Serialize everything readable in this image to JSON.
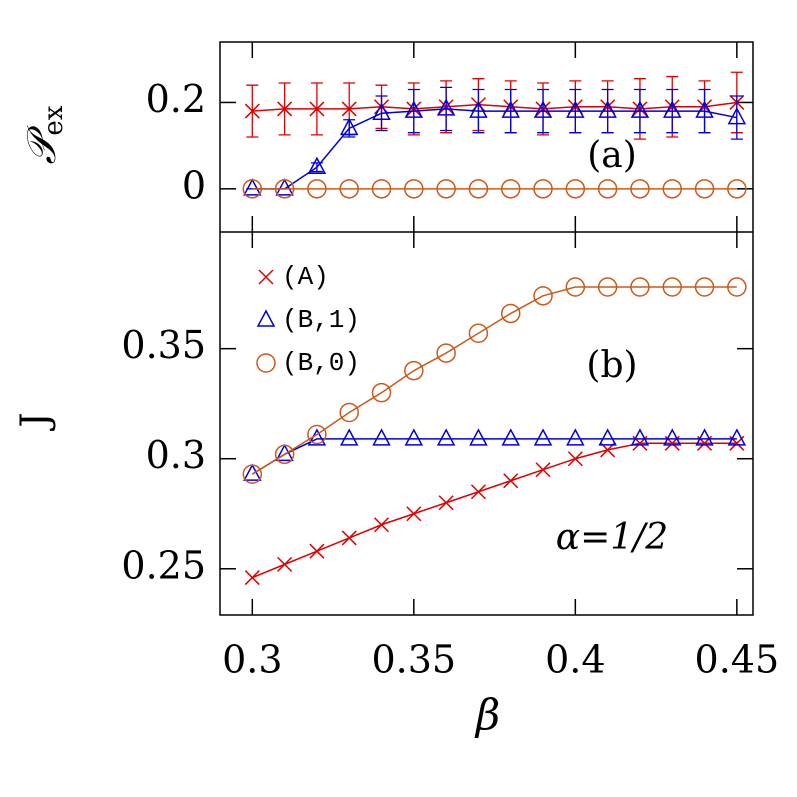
{
  "chart_data": [
    {
      "type": "line",
      "panel_label": "(a)",
      "ylabel": "𝒫",
      "ylabel_sub": "ex",
      "xlim": [
        0.29,
        0.455
      ],
      "ylim": [
        -0.1,
        0.34
      ],
      "yticks": [
        0,
        0.2
      ],
      "x": [
        0.3,
        0.31,
        0.32,
        0.33,
        0.34,
        0.35,
        0.36,
        0.37,
        0.38,
        0.39,
        0.4,
        0.41,
        0.42,
        0.43,
        0.44,
        0.45
      ],
      "series": [
        {
          "name": "(A)",
          "color": "#e00000",
          "marker": "x",
          "values": [
            0.18,
            0.185,
            0.185,
            0.185,
            0.19,
            0.185,
            0.19,
            0.195,
            0.19,
            0.185,
            0.19,
            0.19,
            0.185,
            0.19,
            0.19,
            0.2
          ],
          "errors": [
            0.06,
            0.06,
            0.06,
            0.06,
            0.05,
            0.06,
            0.06,
            0.06,
            0.06,
            0.06,
            0.06,
            0.06,
            0.07,
            0.07,
            0.06,
            0.07
          ]
        },
        {
          "name": "(B,1)",
          "color": "#0000dd",
          "marker": "triangle",
          "values": [
            0,
            0,
            0.05,
            0.14,
            0.175,
            0.18,
            0.185,
            0.18,
            0.18,
            0.18,
            0.18,
            0.18,
            0.18,
            0.18,
            0.18,
            0.165
          ],
          "errors": [
            0,
            0,
            0.01,
            0.02,
            0.04,
            0.05,
            0.05,
            0.05,
            0.05,
            0.05,
            0.05,
            0.05,
            0.05,
            0.05,
            0.05,
            0.05
          ]
        },
        {
          "name": "(B,0)",
          "color": "#cc5a1a",
          "marker": "circle",
          "values": [
            0,
            0,
            0,
            0,
            0,
            0,
            0,
            0,
            0,
            0,
            0,
            0,
            0,
            0,
            0,
            0
          ]
        }
      ]
    },
    {
      "type": "line",
      "panel_label": "(b)",
      "annotation": "α=1/2",
      "xlabel": "β",
      "ylabel": "J",
      "xlim": [
        0.29,
        0.455
      ],
      "xticks": [
        0.3,
        0.35,
        0.4,
        0.45
      ],
      "ylim": [
        0.229,
        0.403
      ],
      "yticks": [
        0.25,
        0.3,
        0.35
      ],
      "legend": "upper left",
      "x": [
        0.3,
        0.31,
        0.32,
        0.33,
        0.34,
        0.35,
        0.36,
        0.37,
        0.38,
        0.39,
        0.4,
        0.41,
        0.42,
        0.43,
        0.44,
        0.45
      ],
      "series": [
        {
          "name": "(A)",
          "color": "#e00000",
          "marker": "x",
          "values": [
            0.246,
            0.252,
            0.258,
            0.264,
            0.27,
            0.275,
            0.28,
            0.285,
            0.29,
            0.295,
            0.3,
            0.304,
            0.307,
            0.307,
            0.307,
            0.307
          ]
        },
        {
          "name": "(B,1)",
          "color": "#0000dd",
          "marker": "triangle",
          "values": [
            0.293,
            0.302,
            0.309,
            0.309,
            0.309,
            0.309,
            0.309,
            0.309,
            0.309,
            0.309,
            0.309,
            0.309,
            0.309,
            0.309,
            0.309,
            0.309
          ]
        },
        {
          "name": "(B,0)",
          "color": "#cc5a1a",
          "marker": "circle",
          "values": [
            0.293,
            0.302,
            0.311,
            0.321,
            0.33,
            0.34,
            0.348,
            0.357,
            0.366,
            0.374,
            0.378,
            0.378,
            0.378,
            0.378,
            0.378,
            0.378
          ]
        }
      ]
    }
  ]
}
